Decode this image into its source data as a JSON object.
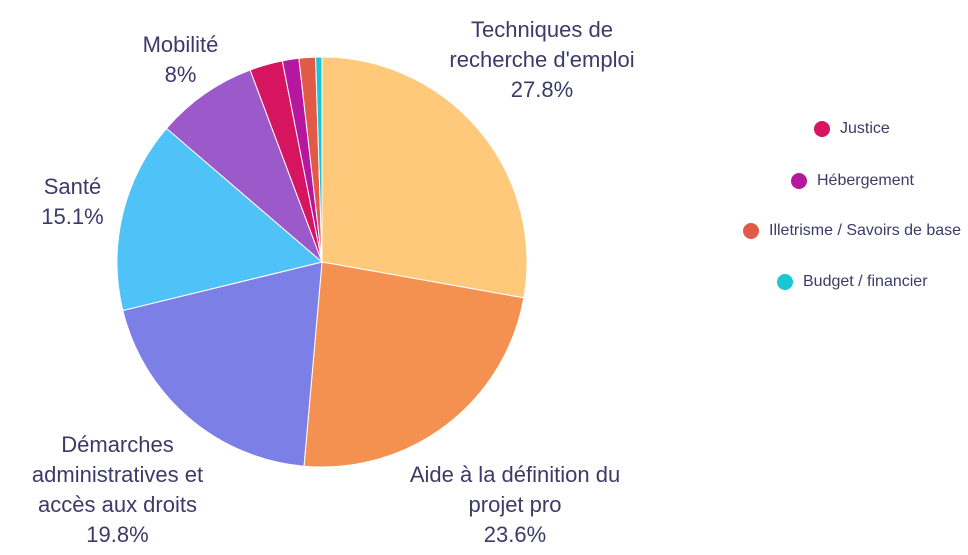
{
  "chart_data": {
    "type": "pie",
    "categories": [
      "Techniques de recherche d'emploi",
      "Aide à la définition du projet pro",
      "Démarches administratives et accès aux droits",
      "Santé",
      "Mobilité",
      "Justice",
      "Hébergement",
      "Illetrisme / Savoirs de base",
      "Budget / financier"
    ],
    "values": [
      27.8,
      23.6,
      19.8,
      15.1,
      8,
      2.6,
      1.3,
      1.3,
      0.5
    ],
    "value_labels": [
      "27.8%",
      "23.6%",
      "19.8%",
      "15.1%",
      "8%",
      null,
      null,
      null,
      null
    ],
    "colors": [
      "#fec97a",
      "#f59150",
      "#7c7fe6",
      "#4fc3f7",
      "#9b59c9",
      "#d6145f",
      "#b5179e",
      "#e05a47",
      "#19c6d6"
    ]
  }
}
